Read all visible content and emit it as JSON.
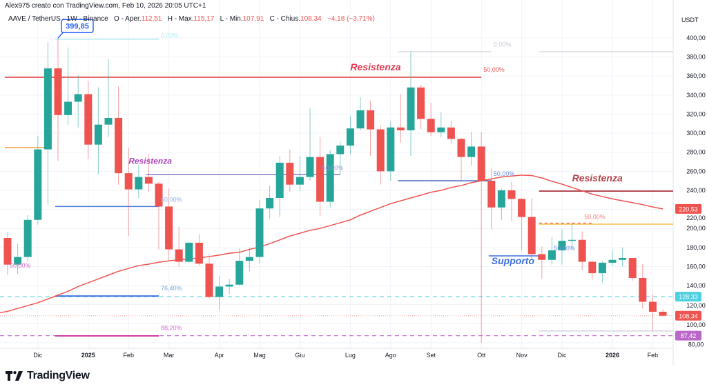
{
  "header": {
    "credit": "Alex975 creato con TradingView.com, Feb 10, 2026 20:05 UTC+1",
    "symbol": "AAVE / TetherUS · 1W · Binance",
    "open_label": "O - Aper.",
    "open": "112,51",
    "high_label": "H - Max.",
    "high": "115,17",
    "low_label": "L - Min.",
    "low": "107,91",
    "close_label": "C - Chius.",
    "close": "108,34",
    "change": "−4,18 (−3,71%)"
  },
  "footer": {
    "brand": "TradingView"
  },
  "colors": {
    "up": "#26a69a",
    "down": "#ef5350",
    "ma": "#ef5350",
    "grid": "#f0f3fa"
  },
  "chart_data": {
    "type": "candlestick",
    "symbol": "AAVE / TetherUS",
    "interval": "1W",
    "ylabel": "USDT",
    "ylim": [
      72,
      412
    ],
    "yticks": [
      "80,00",
      "100,00",
      "120,00",
      "140,00",
      "160,00",
      "180,00",
      "200,00",
      "220,00",
      "240,00",
      "260,00",
      "280,00",
      "300,00",
      "320,00",
      "340,00",
      "360,00",
      "380,00",
      "400,00"
    ],
    "ytick_values": [
      80,
      100,
      120,
      140,
      160,
      180,
      200,
      220,
      240,
      260,
      280,
      300,
      320,
      340,
      360,
      380,
      400
    ],
    "xticks": [
      {
        "label": "Dic",
        "date": "2024-12-02",
        "bold": false
      },
      {
        "label": "2025",
        "date": "2025-01-06",
        "bold": true
      },
      {
        "label": "Feb",
        "date": "2025-02-03",
        "bold": false
      },
      {
        "label": "Mar",
        "date": "2025-03-03",
        "bold": false
      },
      {
        "label": "Apr",
        "date": "2025-04-07",
        "bold": false
      },
      {
        "label": "Mag",
        "date": "2025-05-05",
        "bold": false
      },
      {
        "label": "Giu",
        "date": "2025-06-02",
        "bold": false
      },
      {
        "label": "Lug",
        "date": "2025-07-07",
        "bold": false
      },
      {
        "label": "Ago",
        "date": "2025-08-04",
        "bold": false
      },
      {
        "label": "Set",
        "date": "2025-09-01",
        "bold": false
      },
      {
        "label": "Ott",
        "date": "2025-10-06",
        "bold": false
      },
      {
        "label": "Nov",
        "date": "2025-11-03",
        "bold": false
      },
      {
        "label": "Dic",
        "date": "2025-12-01",
        "bold": false
      },
      {
        "label": "2026",
        "date": "2026-01-05",
        "bold": true
      },
      {
        "label": "Feb",
        "date": "2026-02-02",
        "bold": false
      }
    ],
    "grid": true,
    "dates": [
      "2024-11-11",
      "2024-11-18",
      "2024-11-25",
      "2024-12-02",
      "2024-12-09",
      "2024-12-16",
      "2024-12-23",
      "2024-12-30",
      "2025-01-06",
      "2025-01-13",
      "2025-01-20",
      "2025-01-27",
      "2025-02-03",
      "2025-02-10",
      "2025-02-17",
      "2025-02-24",
      "2025-03-03",
      "2025-03-10",
      "2025-03-17",
      "2025-03-24",
      "2025-03-31",
      "2025-04-07",
      "2025-04-14",
      "2025-04-21",
      "2025-04-28",
      "2025-05-05",
      "2025-05-12",
      "2025-05-19",
      "2025-05-26",
      "2025-06-02",
      "2025-06-09",
      "2025-06-16",
      "2025-06-23",
      "2025-06-30",
      "2025-07-07",
      "2025-07-14",
      "2025-07-21",
      "2025-07-28",
      "2025-08-04",
      "2025-08-11",
      "2025-08-18",
      "2025-08-25",
      "2025-09-01",
      "2025-09-08",
      "2025-09-15",
      "2025-09-22",
      "2025-09-29",
      "2025-10-06",
      "2025-10-13",
      "2025-10-20",
      "2025-10-27",
      "2025-11-03",
      "2025-11-10",
      "2025-11-17",
      "2025-11-24",
      "2025-12-01",
      "2025-12-08",
      "2025-12-15",
      "2025-12-22",
      "2025-12-29",
      "2026-01-05",
      "2026-01-12",
      "2026-01-19",
      "2026-01-26",
      "2026-02-02",
      "2026-02-09"
    ],
    "ohlc": [
      [
        190,
        196,
        151,
        162
      ],
      [
        162,
        184,
        152,
        170
      ],
      [
        170,
        214,
        165,
        209
      ],
      [
        209,
        297,
        204,
        283
      ],
      [
        283,
        396,
        225,
        368
      ],
      [
        368,
        399.85,
        271,
        319
      ],
      [
        319,
        390,
        309,
        333
      ],
      [
        333,
        361,
        306,
        341
      ],
      [
        341,
        355,
        273,
        288
      ],
      [
        288,
        348,
        257,
        309
      ],
      [
        309,
        378,
        296,
        316
      ],
      [
        316,
        349,
        246,
        258
      ],
      [
        258,
        285,
        192,
        241
      ],
      [
        241,
        267,
        232,
        254
      ],
      [
        254,
        278,
        239,
        247
      ],
      [
        247,
        249,
        178,
        223
      ],
      [
        223,
        242,
        167,
        178
      ],
      [
        178,
        202,
        160,
        165
      ],
      [
        165,
        186,
        164,
        185
      ],
      [
        185,
        194,
        161,
        163
      ],
      [
        163,
        170,
        126,
        128
      ],
      [
        128,
        150,
        114,
        139
      ],
      [
        139,
        147,
        131,
        141
      ],
      [
        141,
        179,
        140,
        166
      ],
      [
        166,
        180,
        155,
        170
      ],
      [
        170,
        230,
        163,
        221
      ],
      [
        221,
        245,
        210,
        232
      ],
      [
        232,
        276,
        212,
        269
      ],
      [
        269,
        283,
        238,
        246
      ],
      [
        246,
        276,
        239,
        254
      ],
      [
        254,
        326,
        250,
        275
      ],
      [
        275,
        296,
        213,
        228
      ],
      [
        228,
        282,
        222,
        278
      ],
      [
        278,
        291,
        257,
        287
      ],
      [
        287,
        318,
        278,
        305
      ],
      [
        305,
        338,
        303,
        324
      ],
      [
        324,
        334,
        276,
        304
      ],
      [
        304,
        308,
        246,
        260
      ],
      [
        260,
        312,
        250,
        306
      ],
      [
        306,
        341,
        290,
        303
      ],
      [
        303,
        386,
        276,
        348
      ],
      [
        348,
        351,
        304,
        315
      ],
      [
        315,
        332,
        297,
        301
      ],
      [
        301,
        322,
        296,
        306
      ],
      [
        306,
        313,
        289,
        294
      ],
      [
        294,
        295,
        249,
        275
      ],
      [
        275,
        301,
        266,
        286
      ],
      [
        286,
        301,
        80,
        250
      ],
      [
        250,
        263,
        199,
        222
      ],
      [
        222,
        242,
        209,
        240
      ],
      [
        240,
        249,
        208,
        231
      ],
      [
        231,
        232,
        177,
        212
      ],
      [
        212,
        232,
        168,
        173
      ],
      [
        173,
        181,
        147,
        167
      ],
      [
        167,
        191,
        162,
        177
      ],
      [
        177,
        199,
        162,
        187
      ],
      [
        187,
        206,
        178,
        188
      ],
      [
        188,
        197,
        156,
        165
      ],
      [
        165,
        166,
        146,
        153
      ],
      [
        153,
        166,
        143,
        164
      ],
      [
        164,
        177,
        161,
        167
      ],
      [
        167,
        180,
        160,
        169
      ],
      [
        169,
        169,
        145,
        148
      ],
      [
        148,
        163,
        116,
        123
      ],
      [
        123,
        131,
        92,
        112.51
      ],
      [
        112.51,
        115.17,
        107.91,
        108.34
      ]
    ],
    "moving_average": [
      113,
      116,
      119,
      122,
      126,
      130,
      134,
      139,
      143,
      147,
      151,
      155,
      158,
      161,
      162.5,
      164.5,
      166,
      167,
      168,
      169,
      170.5,
      172,
      174,
      175,
      178,
      180.5,
      184,
      188,
      192,
      195,
      198,
      200,
      203,
      206,
      209,
      214,
      218,
      222,
      226,
      229,
      232,
      235,
      238,
      240,
      243,
      245,
      248,
      250,
      252,
      254,
      255,
      256,
      255.5,
      253,
      249.5,
      246.5,
      243,
      239.5,
      236,
      233.5,
      231,
      229,
      227,
      225,
      222.5,
      220.53
    ],
    "price_tags": [
      {
        "label": "220,53",
        "price": 220.53,
        "color": "#ef5350"
      },
      {
        "label": "128,33",
        "price": 128.33,
        "color": "#4dd0e1"
      },
      {
        "label": "108,34",
        "price": 108.34,
        "color": "#ef5350"
      },
      {
        "label": "87,42",
        "price": 87.42,
        "color": "#ba68c8"
      }
    ],
    "lines": [
      {
        "price": 398.6,
        "from": "2024-12-16",
        "to": "2025-02-24",
        "color": "#b2ebf2",
        "width": 1.5,
        "dash": ""
      },
      {
        "price": 358.7,
        "from": "2024-11-11",
        "to": "2025-10-06",
        "color": "#e53935",
        "width": 1.5,
        "dash": ""
      },
      {
        "price": 285,
        "from": "2024-11-11",
        "to": "2024-12-09",
        "color": "#f0a040",
        "width": 1.5,
        "dash": ""
      },
      {
        "price": 256.5,
        "from": "2025-02-17",
        "to": "2025-06-30",
        "color": "#5c4dc4",
        "width": 1.2,
        "dash": ""
      },
      {
        "price": 223,
        "from": "2024-12-16",
        "to": "2025-02-24",
        "color": "#4a7ee0",
        "width": 1.5,
        "dash": ""
      },
      {
        "price": 385.5,
        "from": "2025-08-11",
        "to": "2025-10-13",
        "color": "#d1d4dc",
        "width": 1.2,
        "dash": ""
      },
      {
        "price": 385.5,
        "from": "2025-11-17",
        "to": "2026-02-23",
        "color": "#d1d4dc",
        "width": 1.2,
        "dash": ""
      },
      {
        "price": 250,
        "from": "2025-08-11",
        "to": "2025-10-13",
        "color": "#3d5fc4",
        "width": 1.5,
        "dash": ""
      },
      {
        "price": 239.2,
        "from": "2025-11-17",
        "to": "2026-02-23",
        "color": "#b2404a",
        "width": 1.8,
        "dash": ""
      },
      {
        "price": 204.5,
        "from": "2025-11-17",
        "to": "2026-02-23",
        "color": "#f5c04a",
        "width": 1.5,
        "dash": ""
      },
      {
        "price": 205.6,
        "from": "2025-11-17",
        "to": "2025-12-22",
        "color": "#ef5350",
        "width": 1.2,
        "dash": "4,4"
      },
      {
        "price": 171.2,
        "from": "2025-10-13",
        "to": "2025-11-17",
        "color": "#3d6fe0",
        "width": 1.5,
        "dash": ""
      },
      {
        "price": 129,
        "from": "2024-12-16",
        "to": "2025-02-24",
        "color": "#3d6fe0",
        "width": 2,
        "dash": ""
      },
      {
        "price": 87.2,
        "from": "2024-12-16",
        "to": "2025-02-24",
        "color": "#d03aa8",
        "width": 2,
        "dash": ""
      },
      {
        "price": 92.3,
        "from": "2025-11-17",
        "to": "2026-02-23",
        "color": "#c5c8d6",
        "width": 1.2,
        "dash": ""
      }
    ],
    "full_width_lines": [
      {
        "price": 128.33,
        "color": "#4dd0e1",
        "dash": "6,5",
        "width": 1.2
      },
      {
        "price": 87.42,
        "color": "#c26bd6",
        "dash": "6,5",
        "width": 1.2
      },
      {
        "price": 108.34,
        "color": "#f4a8a8",
        "dash": "1,2",
        "width": 1
      }
    ],
    "annotations": [
      {
        "text": "Resistenza",
        "date": "2025-07-07",
        "price": 366,
        "color": "#e53950",
        "size": 14
      },
      {
        "text": "Resistenza",
        "date": "2025-02-03",
        "price": 268,
        "color": "#ab47bc",
        "size": 12
      },
      {
        "text": "Resistenza",
        "date": "2025-12-08",
        "price": 249.5,
        "color": "#b2404a",
        "size": 14
      },
      {
        "text": "Supporto",
        "date": "2025-10-13",
        "price": 162.5,
        "color": "#3d6fe0",
        "size": 14
      }
    ],
    "fib_labels": [
      {
        "text": "0,00%",
        "date": "2025-02-24",
        "price": 400.5,
        "color": "#b2ebf2"
      },
      {
        "text": "50,00%",
        "date": "2025-10-06",
        "price": 364.5,
        "color": "#ef5350"
      },
      {
        "text": "0,00%",
        "date": "2025-10-13",
        "price": 391,
        "color": "#c8cad2"
      },
      {
        "text": "50,00%",
        "date": "2025-06-16",
        "price": 261.5,
        "color": "#9c8fe0"
      },
      {
        "text": "50,00%",
        "date": "2025-02-24",
        "price": 228,
        "color": "#8fb0ee"
      },
      {
        "text": "50,00%",
        "date": "2025-10-13",
        "price": 255,
        "color": "#6f8fe0"
      },
      {
        "text": "50,00%",
        "date": "2025-12-15",
        "price": 210,
        "color": "#f08080"
      },
      {
        "text": "50,00%",
        "date": "2025-11-24",
        "price": 177,
        "color": "#6f8fe0"
      },
      {
        "text": "50,00%",
        "date": "2024-11-11",
        "price": 159,
        "color": "#d070c8"
      },
      {
        "text": "76,40%",
        "date": "2025-02-24",
        "price": 135,
        "color": "#6fa8d8"
      },
      {
        "text": "88,20%",
        "date": "2025-02-24",
        "price": 93.5,
        "color": "#d070c8"
      }
    ],
    "callout": {
      "text": "399,85",
      "date": "2024-12-16",
      "price": 399.85,
      "color": "#2962ff"
    }
  }
}
